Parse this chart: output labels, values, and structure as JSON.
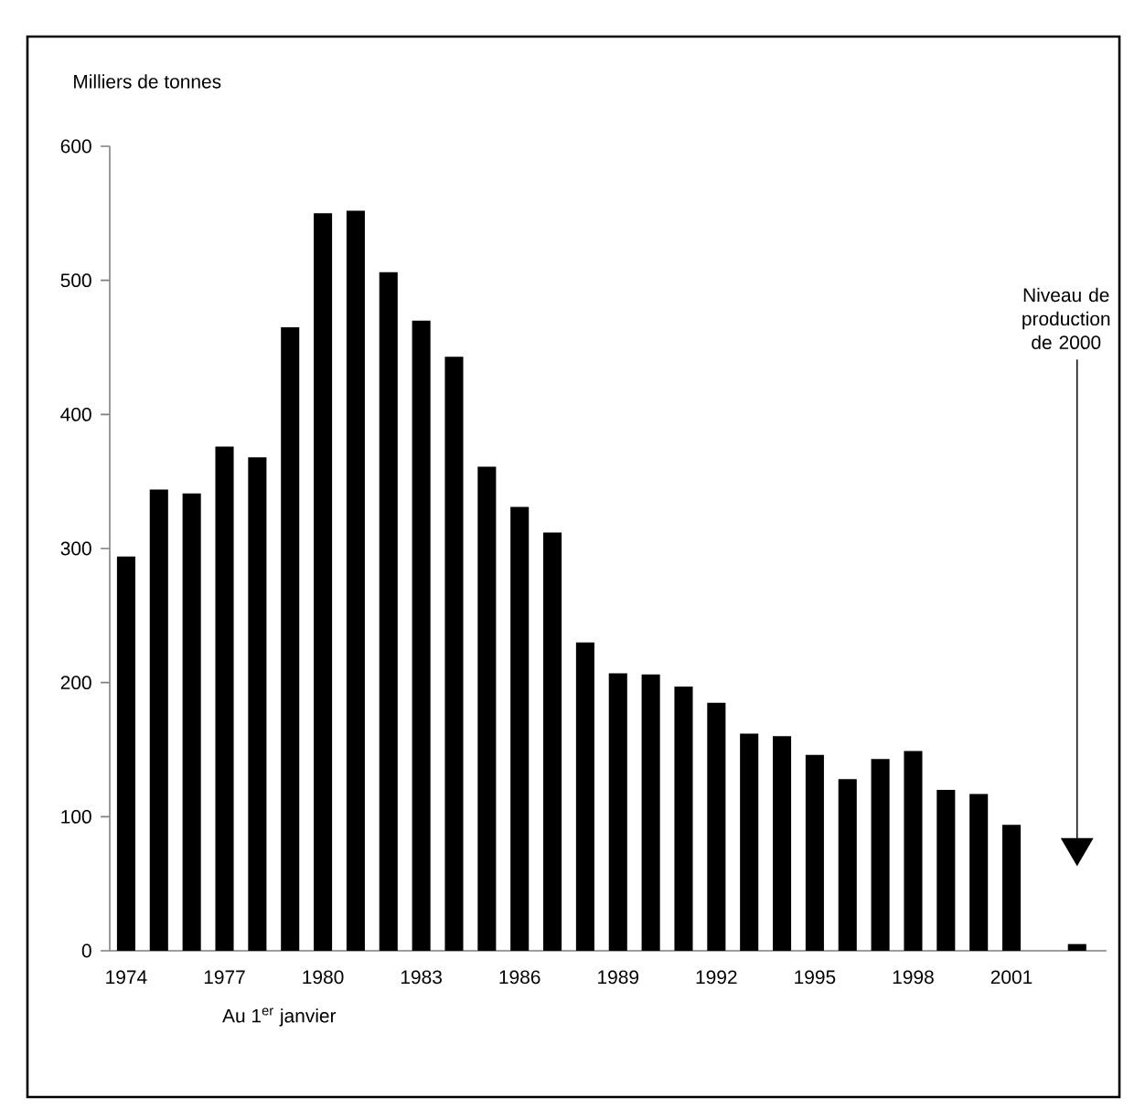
{
  "chart_data": {
    "type": "bar",
    "ylabel": "Milliers de tonnes",
    "xlabel": "Au 1$^{er}$ janvier",
    "categories": [
      "1974",
      null,
      null,
      "1977",
      null,
      null,
      "1980",
      null,
      null,
      "1983",
      null,
      null,
      "1986",
      null,
      null,
      "1989",
      null,
      null,
      "1992",
      null,
      null,
      "1995",
      null,
      null,
      "1998",
      null,
      null,
      "2001",
      null,
      null
    ],
    "values": [
      294,
      344,
      341,
      376,
      368,
      465,
      550,
      552,
      506,
      470,
      443,
      361,
      331,
      312,
      230,
      207,
      206,
      197,
      185,
      162,
      160,
      146,
      128,
      143,
      149,
      120,
      117,
      94,
      null,
      5
    ],
    "color": "#000000",
    "ylim": [
      0,
      600
    ],
    "yticks": [
      0,
      100,
      200,
      300,
      400,
      500,
      600
    ],
    "annotations": [
      "Niveau de production de 2000"
    ],
    "grid": false
  }
}
